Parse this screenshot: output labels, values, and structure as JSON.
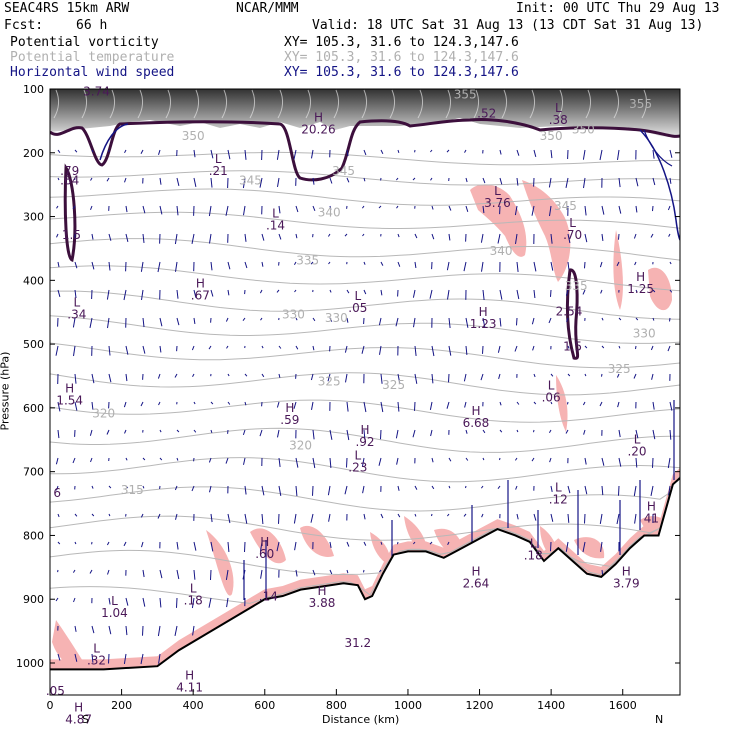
{
  "header": {
    "model": "SEAC4RS 15km ARW",
    "org": "NCAR/MMM",
    "init": "Init: 00 UTC Thu 29 Aug 13",
    "fcst_label": "Fcst:",
    "fcst_value": "66 h",
    "valid": "Valid: 18 UTC Sat 31 Aug 13 (13 CDT Sat 31 Aug 13)"
  },
  "legend": [
    {
      "label": "Potential vorticity",
      "xy": "XY= 105.3, 31.6 to 124.3,147.6",
      "color": "#000000"
    },
    {
      "label": "Potential temperature",
      "xy": "XY= 105.3, 31.6 to 124.3,147.6",
      "color": "#b0b0b0"
    },
    {
      "label": "Horizontal wind speed",
      "xy": "XY= 105.3, 31.6 to 124.3,147.6",
      "color": "#141485"
    }
  ],
  "chart_data": {
    "type": "cross-section",
    "xlabel": "Distance (km)",
    "ylabel": "Pressure (hPa)",
    "xlim": [
      0,
      1760
    ],
    "ylim": [
      1050,
      100
    ],
    "xticks": [
      0,
      200,
      400,
      600,
      800,
      1000,
      1200,
      1400,
      1600
    ],
    "yticks": [
      100,
      200,
      300,
      400,
      500,
      600,
      700,
      800,
      900,
      1000
    ],
    "endpoints": {
      "left": "S",
      "right": "N"
    },
    "theta_labels": [
      {
        "text": "350",
        "x": 400,
        "p": 180
      },
      {
        "text": "345",
        "x": 560,
        "p": 250
      },
      {
        "text": "345",
        "x": 820,
        "p": 235
      },
      {
        "text": "340",
        "x": 780,
        "p": 300
      },
      {
        "text": "335",
        "x": 720,
        "p": 375
      },
      {
        "text": "330",
        "x": 680,
        "p": 460
      },
      {
        "text": "330",
        "x": 800,
        "p": 465
      },
      {
        "text": "325",
        "x": 780,
        "p": 565
      },
      {
        "text": "325",
        "x": 960,
        "p": 570
      },
      {
        "text": "320",
        "x": 150,
        "p": 615
      },
      {
        "text": "320",
        "x": 700,
        "p": 665
      },
      {
        "text": "315",
        "x": 230,
        "p": 735
      },
      {
        "text": "355",
        "x": 1160,
        "p": 115
      },
      {
        "text": "350",
        "x": 1400,
        "p": 180
      },
      {
        "text": "350",
        "x": 1490,
        "p": 170
      },
      {
        "text": "355",
        "x": 1650,
        "p": 130
      },
      {
        "text": "345",
        "x": 1440,
        "p": 290
      },
      {
        "text": "340",
        "x": 1260,
        "p": 360
      },
      {
        "text": "335",
        "x": 1470,
        "p": 415
      },
      {
        "text": "330",
        "x": 1660,
        "p": 490
      },
      {
        "text": "325",
        "x": 1590,
        "p": 545
      }
    ],
    "extrema": [
      {
        "kind": "H",
        "value": "20.26",
        "x": 750,
        "p": 170
      },
      {
        "kind": "",
        "value": ".52",
        "x": 1220,
        "p": 145
      },
      {
        "kind": "L",
        "value": ".38",
        "x": 1420,
        "p": 155
      },
      {
        "kind": "",
        "value": "3.74",
        "x": 130,
        "p": 110
      },
      {
        "kind": "L",
        "value": ".21",
        "x": 470,
        "p": 235
      },
      {
        "kind": "",
        "value": ".79",
        "x": 55,
        "p": 235
      },
      {
        "kind": "",
        "value": ".64",
        "x": 55,
        "p": 250
      },
      {
        "kind": "L",
        "value": "3.76",
        "x": 1250,
        "p": 285
      },
      {
        "kind": "L",
        "value": ".14",
        "x": 630,
        "p": 320
      },
      {
        "kind": "",
        "value": "1.5",
        "x": 60,
        "p": 335
      },
      {
        "kind": "L",
        "value": ".70",
        "x": 1460,
        "p": 335
      },
      {
        "kind": "H",
        "value": ".67",
        "x": 420,
        "p": 430
      },
      {
        "kind": "H",
        "value": "1.25",
        "x": 1650,
        "p": 420
      },
      {
        "kind": "L",
        "value": ".34",
        "x": 75,
        "p": 460
      },
      {
        "kind": "L",
        "value": ".05",
        "x": 860,
        "p": 450
      },
      {
        "kind": "H",
        "value": "1.23",
        "x": 1210,
        "p": 475
      },
      {
        "kind": "",
        "value": "2.54",
        "x": 1450,
        "p": 455
      },
      {
        "kind": "",
        "value": "1.5",
        "x": 1460,
        "p": 510
      },
      {
        "kind": "H",
        "value": "1.54",
        "x": 55,
        "p": 595
      },
      {
        "kind": "L",
        "value": ".06",
        "x": 1400,
        "p": 590
      },
      {
        "kind": "H",
        "value": ".59",
        "x": 670,
        "p": 625
      },
      {
        "kind": "H",
        "value": "6.68",
        "x": 1190,
        "p": 630
      },
      {
        "kind": "H",
        "value": ".92",
        "x": 880,
        "p": 660
      },
      {
        "kind": "L",
        "value": ".23",
        "x": 860,
        "p": 700
      },
      {
        "kind": "L",
        "value": ".20",
        "x": 1640,
        "p": 675
      },
      {
        "kind": "",
        "value": "6",
        "x": 20,
        "p": 740
      },
      {
        "kind": "L",
        "value": ".12",
        "x": 1420,
        "p": 750
      },
      {
        "kind": "H",
        "value": "41",
        "x": 1680,
        "p": 780
      },
      {
        "kind": "H",
        "value": ".60",
        "x": 600,
        "p": 835
      },
      {
        "kind": "L",
        "value": ".18",
        "x": 1350,
        "p": 838
      },
      {
        "kind": "H",
        "value": "2.64",
        "x": 1190,
        "p": 882
      },
      {
        "kind": "",
        "value": ".14",
        "x": 610,
        "p": 902
      },
      {
        "kind": "H",
        "value": "3.88",
        "x": 760,
        "p": 912
      },
      {
        "kind": "H",
        "value": "3.79",
        "x": 1610,
        "p": 882
      },
      {
        "kind": "L",
        "value": ".18",
        "x": 400,
        "p": 908
      },
      {
        "kind": "L",
        "value": "1.04",
        "x": 180,
        "p": 928
      },
      {
        "kind": "",
        "value": "31.2",
        "x": 860,
        "p": 975
      },
      {
        "kind": "L",
        "value": ".32",
        "x": 130,
        "p": 1002
      },
      {
        "kind": "H",
        "value": "4.11",
        "x": 390,
        "p": 1045
      },
      {
        "kind": "",
        "value": ".05",
        "x": 15,
        "p": 1050
      },
      {
        "kind": "H",
        "value": "4.87",
        "x": 80,
        "p": 1095
      }
    ],
    "terrain": {
      "x": [
        0,
        150,
        300,
        360,
        420,
        480,
        540,
        600,
        650,
        700,
        760,
        820,
        860,
        880,
        900,
        930,
        960,
        1000,
        1050,
        1100,
        1150,
        1200,
        1250,
        1300,
        1340,
        1380,
        1420,
        1460,
        1500,
        1540,
        1580,
        1620,
        1660,
        1700,
        1740,
        1760
      ],
      "p": [
        1010,
        1010,
        1005,
        980,
        960,
        940,
        920,
        900,
        895,
        885,
        880,
        875,
        878,
        900,
        895,
        860,
        830,
        825,
        825,
        835,
        820,
        805,
        790,
        800,
        810,
        840,
        820,
        840,
        860,
        865,
        845,
        820,
        800,
        800,
        720,
        710
      ]
    }
  }
}
